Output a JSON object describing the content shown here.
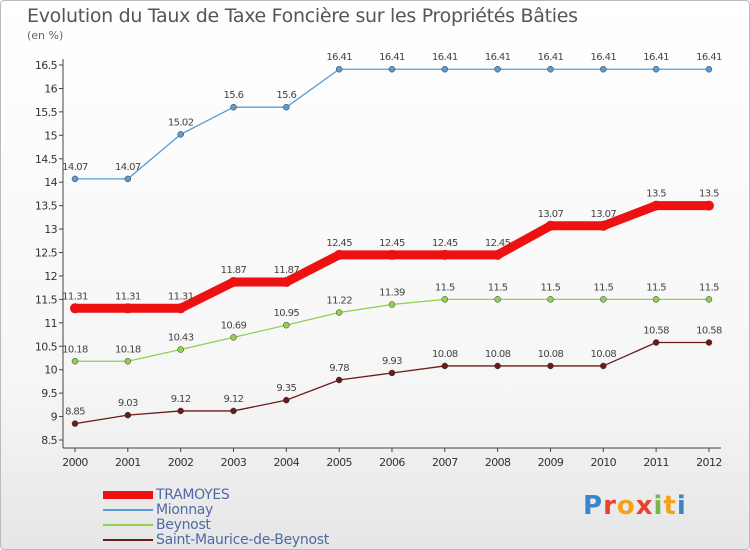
{
  "title": "Evolution du Taux de Taxe Foncière sur les Propriétés Bâties",
  "unit_label": "(en %)",
  "logo": {
    "letters": [
      "P",
      "r",
      "o",
      "x",
      "i",
      "t",
      "i"
    ],
    "colors": [
      "#3b86c8",
      "#e8412f",
      "#f4a21b",
      "#e8412f",
      "#7ab648",
      "#f4a21b",
      "#3b86c8"
    ]
  },
  "chart_data": {
    "type": "line",
    "x": [
      "2000",
      "2001",
      "2002",
      "2003",
      "2004",
      "2005",
      "2006",
      "2007",
      "2008",
      "2009",
      "2010",
      "2011",
      "2012"
    ],
    "ylim": [
      8.5,
      16.5
    ],
    "yticks": [
      "8.5",
      "9",
      "9.5",
      "10",
      "10.5",
      "11",
      "11.5",
      "12",
      "12.5",
      "13",
      "13.5",
      "14",
      "14.5",
      "15",
      "15.5",
      "16",
      "16.5"
    ],
    "grid": false,
    "series": [
      {
        "name": "TRAMOYES",
        "color": "#ee1111",
        "values": [
          11.31,
          11.31,
          11.31,
          11.87,
          11.87,
          12.45,
          12.45,
          12.45,
          12.45,
          13.07,
          13.07,
          13.5,
          13.5
        ],
        "labels": [
          "11.31",
          "11.31",
          "11.31",
          "11.87",
          "11.87",
          "12.45",
          "12.45",
          "12.45",
          "12.45",
          "13.07",
          "13.07",
          "13.5",
          "13.5"
        ]
      },
      {
        "name": "Mionnay",
        "color": "#5b9bd5",
        "values": [
          14.07,
          14.07,
          15.02,
          15.6,
          15.6,
          16.41,
          16.41,
          16.41,
          16.41,
          16.41,
          16.41,
          16.41,
          16.41
        ],
        "labels": [
          "14.07",
          "14.07",
          "15.02",
          "15.6",
          "15.6",
          "16.41",
          "16.41",
          "16.41",
          "16.41",
          "16.41",
          "16.41",
          "16.41",
          "16.41"
        ]
      },
      {
        "name": "Beynost",
        "color": "#8fd14f",
        "values": [
          10.18,
          10.18,
          10.43,
          10.69,
          10.95,
          11.22,
          11.39,
          11.5,
          11.5,
          11.5,
          11.5,
          11.5,
          11.5
        ],
        "labels": [
          "10.18",
          "10.18",
          "10.43",
          "10.69",
          "10.95",
          "11.22",
          "11.39",
          "11.5",
          "11.5",
          "11.5",
          "11.5",
          "11.5",
          "11.5"
        ]
      },
      {
        "name": "Saint-Maurice-de-Beynost",
        "color": "#6b1a1a",
        "values": [
          8.85,
          9.03,
          9.12,
          9.12,
          9.35,
          9.78,
          9.93,
          10.08,
          10.08,
          10.08,
          10.08,
          10.58,
          10.58
        ],
        "labels": [
          "8.85",
          "9.03",
          "9.12",
          "9.12",
          "9.35",
          "9.78",
          "9.93",
          "10.08",
          "10.08",
          "10.08",
          "10.08",
          "10.58",
          "10.58"
        ]
      }
    ]
  }
}
